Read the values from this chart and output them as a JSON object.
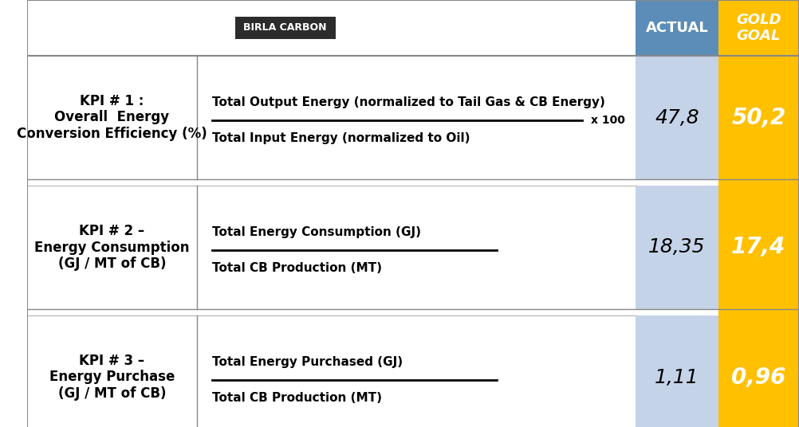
{
  "title": "",
  "birla_carbon_label": "BIRLA CARBON",
  "header_actual": "ACTUAL",
  "header_gold": "GOLD\nGOAL",
  "actual_col_color": "#5B8DB8",
  "actual_cell_color": "#C5D3E8",
  "gold_col_color": "#FFC000",
  "separator_color": "#888888",
  "border_color": "#AAAAAA",
  "bg_color": "#FFFFFF",
  "rows": [
    {
      "kpi_label": "KPI # 1 :\nOverall  Energy\nConversion Efficiency (%)",
      "formula_numerator": "Total Output Energy (normalized to Tail Gas & CB Energy)",
      "formula_denominator": "Total Input Energy (normalized to Oil)",
      "multiplier": "x 100",
      "actual_value": "47,8",
      "gold_value": "50,2"
    },
    {
      "kpi_label": "KPI # 2 –\nEnergy Consumption\n(GJ / MT of CB)",
      "formula_numerator": "Total Energy Consumption (GJ)",
      "formula_denominator": "Total CB Production (MT)",
      "multiplier": "",
      "actual_value": "18,35",
      "gold_value": "17,4"
    },
    {
      "kpi_label": "KPI # 3 –\nEnergy Purchase\n(GJ / MT of CB)",
      "formula_numerator": "Total Energy Purchased (GJ)",
      "formula_denominator": "Total CB Production (MT)",
      "multiplier": "",
      "actual_value": "1,11",
      "gold_value": "0,96"
    }
  ]
}
